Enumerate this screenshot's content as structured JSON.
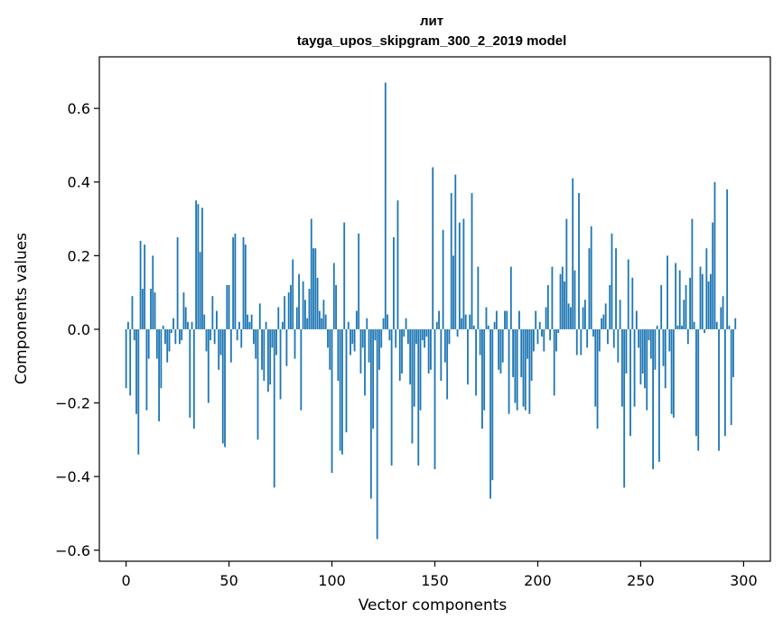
{
  "chart_data": {
    "type": "bar",
    "title": "лит",
    "subtitle": "tayga_upos_skipgram_300_2_2019 model",
    "xlabel": "Vector components",
    "ylabel": "Components values",
    "xlim": [
      -13,
      313
    ],
    "ylim": [
      -0.63,
      0.74
    ],
    "xticks": [
      0,
      50,
      100,
      150,
      200,
      250,
      300
    ],
    "xtick_labels": [
      "0",
      "50",
      "100",
      "150",
      "200",
      "250",
      "300"
    ],
    "yticks": [
      -0.6,
      -0.4,
      -0.2,
      0.0,
      0.2,
      0.4,
      0.6
    ],
    "ytick_labels": [
      "−0.6",
      "−0.4",
      "−0.2",
      "0.0",
      "0.2",
      "0.4",
      "0.6"
    ],
    "bar_color": "#1f77b4",
    "grid": false,
    "values": [
      -0.16,
      0.02,
      -0.18,
      0.09,
      -0.03,
      -0.23,
      -0.34,
      0.24,
      0.11,
      0.23,
      -0.22,
      -0.08,
      0.11,
      0.2,
      0.1,
      -0.08,
      -0.25,
      -0.16,
      0.01,
      -0.04,
      -0.09,
      -0.06,
      -0.01,
      0.03,
      -0.04,
      0.25,
      -0.04,
      -0.03,
      0.1,
      0.06,
      0.02,
      -0.24,
      0.02,
      -0.27,
      0.35,
      0.34,
      0.21,
      0.33,
      0.04,
      -0.06,
      -0.2,
      -0.03,
      0.09,
      -0.04,
      0.05,
      -0.11,
      -0.07,
      -0.31,
      -0.32,
      0.12,
      0.12,
      -0.09,
      0.25,
      0.26,
      -0.03,
      0.02,
      -0.05,
      0.25,
      0.23,
      0.04,
      0.02,
      0.04,
      -0.04,
      -0.08,
      -0.3,
      0.07,
      -0.11,
      -0.14,
      0.02,
      -0.17,
      -0.15,
      -0.05,
      -0.43,
      -0.07,
      0.06,
      -0.19,
      0.02,
      0.09,
      -0.1,
      0.1,
      0.12,
      0.19,
      -0.08,
      0.06,
      0.15,
      -0.22,
      0.13,
      0.08,
      0.03,
      0.11,
      0.3,
      0.22,
      0.22,
      0.14,
      0.05,
      0.03,
      0.08,
      0.04,
      -0.05,
      -0.11,
      -0.39,
      0.18,
      0.12,
      -0.14,
      -0.33,
      -0.34,
      0.29,
      -0.28,
      0.02,
      -0.07,
      -0.04,
      -0.06,
      0.05,
      0.26,
      -0.12,
      -0.05,
      -0.18,
      0.03,
      -0.09,
      -0.46,
      -0.27,
      -0.03,
      -0.57,
      -0.11,
      -0.05,
      0.03,
      0.67,
      0.04,
      -0.03,
      -0.37,
      0.25,
      -0.05,
      0.35,
      -0.14,
      -0.12,
      -0.02,
      0.03,
      -0.04,
      -0.15,
      -0.31,
      -0.21,
      -0.04,
      -0.37,
      -0.22,
      -0.03,
      -0.05,
      -0.02,
      -0.12,
      -0.11,
      0.44,
      -0.38,
      0.02,
      0.05,
      -0.14,
      0.27,
      -0.09,
      -0.19,
      -0.04,
      0.37,
      0.2,
      0.42,
      -0.02,
      0.29,
      0.03,
      0.3,
      0.04,
      -0.15,
      0.04,
      0.37,
      0.01,
      -0.18,
      0.17,
      -0.07,
      -0.27,
      -0.22,
      0.06,
      0.01,
      -0.46,
      -0.41,
      0.02,
      0.05,
      -0.11,
      -0.12,
      -0.09,
      0.05,
      0.05,
      -0.23,
      0.17,
      -0.13,
      -0.2,
      -0.22,
      0.05,
      -0.13,
      -0.21,
      -0.22,
      -0.08,
      -0.23,
      -0.14,
      -0.06,
      0.05,
      -0.04,
      0.02,
      -0.02,
      -0.06,
      0.06,
      0.12,
      -0.03,
      0.17,
      -0.18,
      -0.06,
      -0.01,
      0.15,
      0.17,
      0.13,
      0.3,
      0.07,
      0.06,
      0.41,
      0.16,
      -0.07,
      0.37,
      -0.07,
      0.06,
      0.08,
      -0.05,
      0.22,
      0.28,
      -0.02,
      -0.21,
      -0.27,
      -0.06,
      0.03,
      0.04,
      0.07,
      -0.04,
      0.12,
      0.26,
      -0.05,
      0.22,
      -0.09,
      0.08,
      -0.21,
      -0.43,
      -0.12,
      0.19,
      -0.29,
      0.14,
      -0.21,
      0.05,
      -0.05,
      -0.15,
      -0.12,
      -0.16,
      -0.22,
      -0.03,
      -0.08,
      -0.38,
      -0.11,
      0.01,
      -0.36,
      0.12,
      -0.1,
      -0.16,
      0.2,
      -0.06,
      -0.23,
      -0.24,
      0.18,
      0.01,
      0.16,
      0.01,
      0.08,
      0.12,
      -0.04,
      0.14,
      0.3,
      0.02,
      -0.29,
      -0.33,
      0.17,
      0.15,
      -0.01,
      0.22,
      0.13,
      0.15,
      0.29,
      0.4,
      0.02,
      -0.33,
      0.06,
      0.09,
      -0.29,
      0.38,
      0.01,
      -0.26,
      -0.13,
      0.03
    ]
  }
}
